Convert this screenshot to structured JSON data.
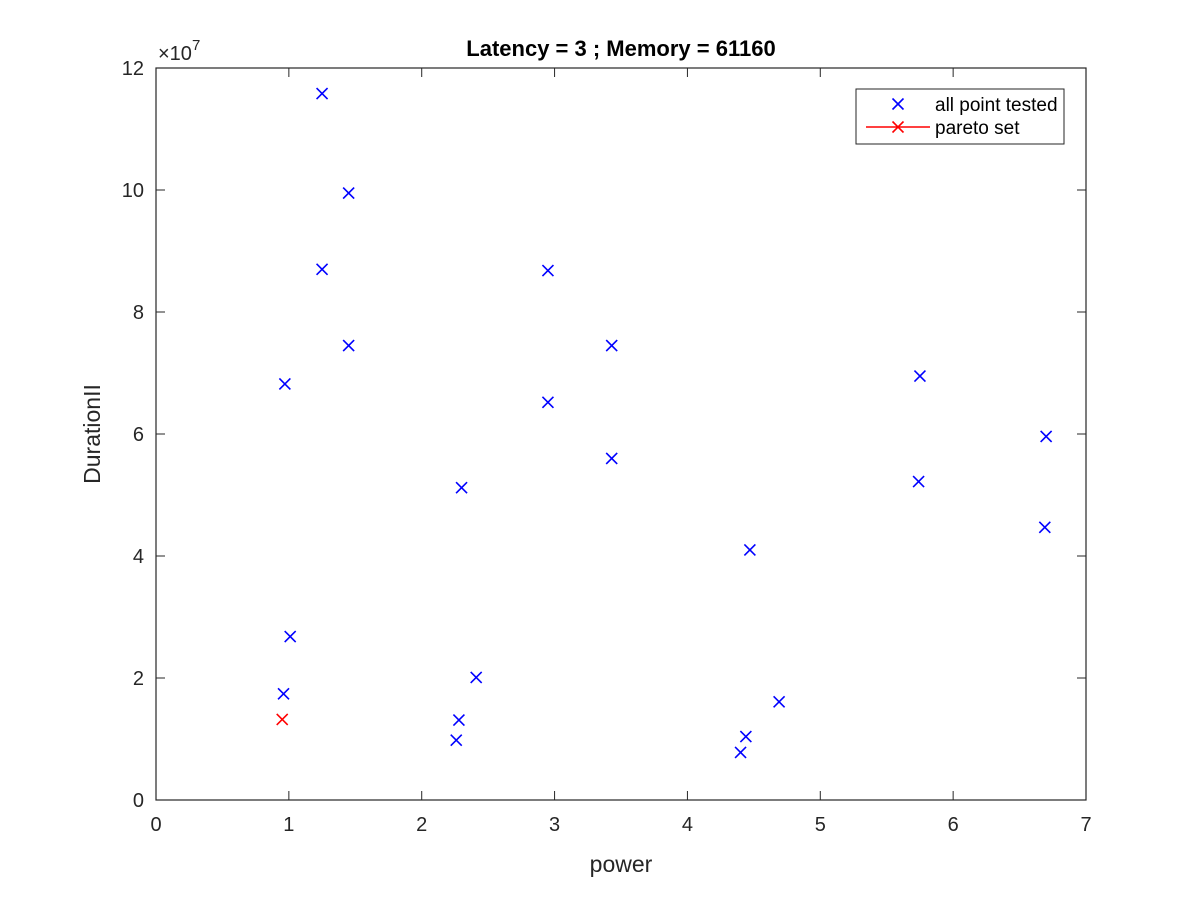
{
  "chart_data": {
    "type": "scatter",
    "title": "Latency = 3 ; Memory = 61160",
    "xlabel": "power",
    "ylabel": "DurationII",
    "xlim": [
      0,
      7
    ],
    "ylim": [
      0,
      12
    ],
    "y_exponent_label": "×10",
    "y_exponent_power": "7",
    "x_ticks": [
      "0",
      "1",
      "2",
      "3",
      "4",
      "5",
      "6",
      "7"
    ],
    "y_ticks": [
      "0",
      "2",
      "4",
      "6",
      "8",
      "10",
      "12"
    ],
    "grid": false,
    "legend_position": "top-right",
    "series": [
      {
        "name": "all point tested",
        "color": "#0000ff",
        "marker": "x",
        "points": [
          [
            1.25,
            11.58
          ],
          [
            1.45,
            9.95
          ],
          [
            1.25,
            8.7
          ],
          [
            1.45,
            7.45
          ],
          [
            0.97,
            6.82
          ],
          [
            1.01,
            2.68
          ],
          [
            0.96,
            1.74
          ],
          [
            2.95,
            8.68
          ],
          [
            2.95,
            6.52
          ],
          [
            3.43,
            7.45
          ],
          [
            3.43,
            5.6
          ],
          [
            2.3,
            5.12
          ],
          [
            2.41,
            2.01
          ],
          [
            2.28,
            1.31
          ],
          [
            2.26,
            0.98
          ],
          [
            5.75,
            6.95
          ],
          [
            5.74,
            5.22
          ],
          [
            6.7,
            5.96
          ],
          [
            6.69,
            4.47
          ],
          [
            4.47,
            4.1
          ],
          [
            4.69,
            1.61
          ],
          [
            4.44,
            1.04
          ],
          [
            4.4,
            0.78
          ]
        ]
      },
      {
        "name": "pareto set",
        "color": "#ff0000",
        "marker": "x-line",
        "points": [
          [
            0.95,
            1.32
          ]
        ]
      }
    ]
  }
}
